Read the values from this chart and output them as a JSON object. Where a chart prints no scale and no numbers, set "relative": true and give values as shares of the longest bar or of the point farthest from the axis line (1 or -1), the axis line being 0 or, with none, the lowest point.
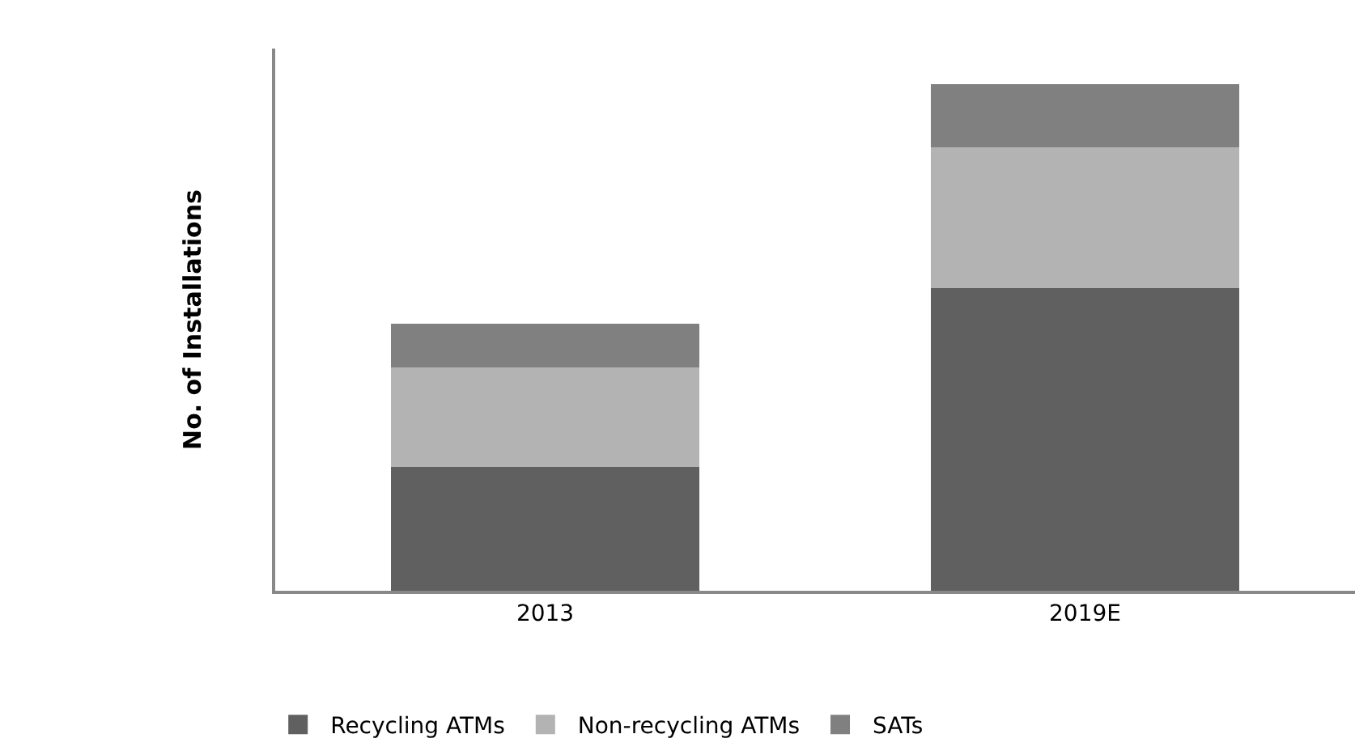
{
  "chart_data": {
    "type": "bar",
    "stacked": true,
    "relative": true,
    "ylabel": "No. of Installations",
    "categories": [
      "2013",
      "2019E"
    ],
    "series": [
      {
        "name": "Recycling ATMs",
        "color": "#606060",
        "values": [
          0.244,
          0.597
        ]
      },
      {
        "name": "Non-recycling ATMs",
        "color": "#b3b3b3",
        "values": [
          0.196,
          0.278
        ]
      },
      {
        "name": "SATs",
        "color": "#808080",
        "values": [
          0.087,
          0.125
        ]
      }
    ],
    "legend": "bottom"
  }
}
